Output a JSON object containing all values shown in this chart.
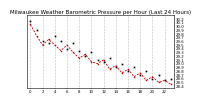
{
  "title": "Milwaukee Weather Barometric Pressure per Hour (Last 24 Hours)",
  "hours": [
    0,
    1,
    2,
    3,
    4,
    5,
    6,
    7,
    8,
    9,
    10,
    11,
    12,
    13,
    14,
    15,
    16,
    17,
    18,
    19,
    20,
    21,
    22,
    23
  ],
  "pressure_black": [
    30.15,
    29.9,
    29.6,
    29.55,
    29.75,
    29.6,
    29.4,
    29.55,
    29.35,
    29.2,
    29.3,
    29.1,
    29.05,
    29.15,
    28.9,
    29.0,
    28.8,
    28.9,
    28.7,
    28.8,
    28.6,
    28.7,
    28.55,
    28.6
  ],
  "pressure_red": [
    30.05,
    29.75,
    29.5,
    29.65,
    29.5,
    29.35,
    29.5,
    29.3,
    29.15,
    29.25,
    29.05,
    29.0,
    29.1,
    28.85,
    28.95,
    28.75,
    28.85,
    28.65,
    28.75,
    28.55,
    28.65,
    28.5,
    28.55,
    28.45
  ],
  "ylim": [
    28.35,
    30.3
  ],
  "ytick_values": [
    28.4,
    28.5,
    28.6,
    28.7,
    28.8,
    28.9,
    29.0,
    29.1,
    29.2,
    29.3,
    29.4,
    29.5,
    29.6,
    29.7,
    29.8,
    29.9,
    30.0,
    30.1,
    30.2
  ],
  "xtick_values": [
    0,
    2,
    4,
    6,
    8,
    10,
    12,
    14,
    16,
    18,
    20,
    22
  ],
  "line1_color": "#000000",
  "line2_color": "#cc0000",
  "bg_color": "#ffffff",
  "grid_color": "#888888",
  "title_fontsize": 4.0,
  "tick_fontsize": 2.8
}
